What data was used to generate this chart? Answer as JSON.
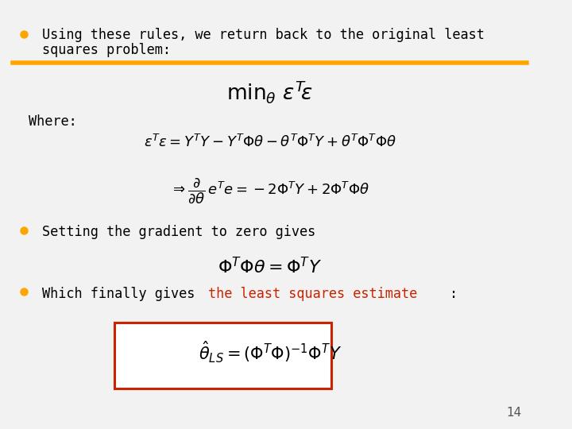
{
  "background_color": "#f2f2f2",
  "bullet_color": "#FFA500",
  "orange_line_color": "#FFA500",
  "red_text_color": "#CC2200",
  "black_text_color": "#000000",
  "gray_text_color": "#555555",
  "box_color": "#CC2200",
  "page_number": "14",
  "bullet1_line1": "Using these rules, we return back to the original least",
  "bullet1_line2": "squares problem:",
  "where_text": "Where:",
  "bullet2_text": "Setting the gradient to zero gives",
  "bullet3_before": "Which finally gives ",
  "bullet3_highlight": "the least squares estimate",
  "bullet3_after": ":"
}
